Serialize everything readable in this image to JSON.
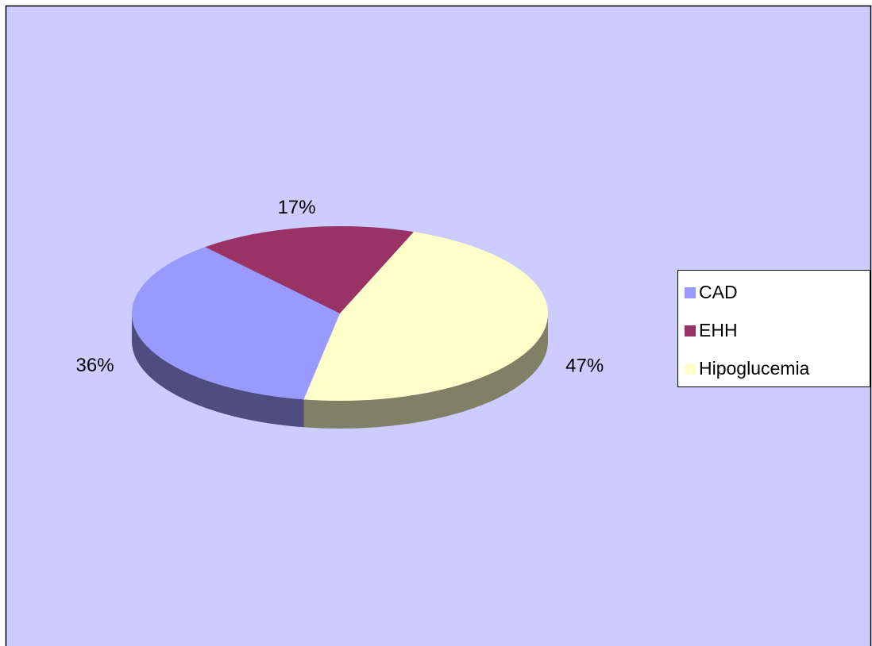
{
  "chart_data": {
    "type": "pie",
    "categories": [
      "CAD",
      "EHH",
      "Hipoglucemia"
    ],
    "values": [
      36,
      17,
      47
    ],
    "value_labels": [
      "36%",
      "17%",
      "47%"
    ],
    "colors": [
      "#9999ff",
      "#993366",
      "#ffffcc"
    ],
    "legend": "right"
  }
}
